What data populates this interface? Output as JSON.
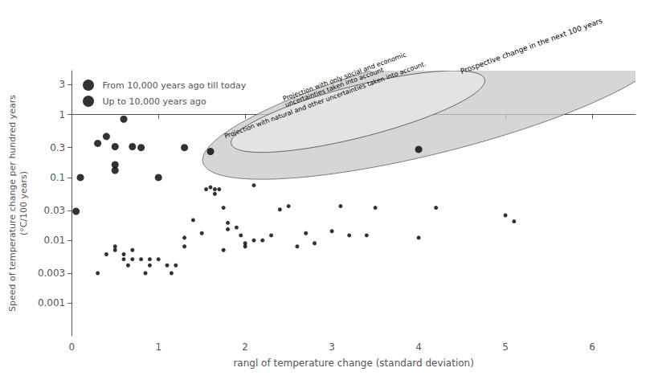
{
  "chart_data": {
    "type": "scatter",
    "xlabel": "rangl of temperature change (standard deviation)",
    "ylabel": "Speed of temperature change per hundred years\n(°C/100 years)",
    "log": "y",
    "grid": false,
    "legend": "upper left",
    "xlim": [
      0,
      6.5
    ],
    "ylim": [
      0.0003019951720402,
      5.011872336272722
    ],
    "xticks": [
      0,
      1,
      2,
      3,
      4,
      5,
      6
    ],
    "yticks": [
      0.001,
      0.003,
      0.01,
      0.03,
      0.1,
      0.3,
      1,
      3
    ],
    "series": [
      {
        "name": "From 10,000 years ago till today",
        "color": "#000000",
        "marker": "circle",
        "x": [
          0.05,
          0.1,
          0.3,
          0.4,
          0.5,
          0.5,
          0.5,
          0.6,
          0.7,
          0.8,
          1.0,
          1.3,
          1.6,
          4.0
        ],
        "values": [
          0.029,
          0.1,
          0.35,
          0.45,
          0.13,
          0.16,
          0.31,
          0.85,
          0.31,
          0.3,
          0.1,
          0.3,
          0.26,
          0.28
        ]
      },
      {
        "name": "Up to 10,000 years ago",
        "color": "#000000",
        "marker": "circle",
        "x": [
          0.3,
          0.4,
          0.5,
          0.5,
          0.6,
          0.6,
          0.65,
          0.7,
          0.7,
          0.8,
          0.85,
          0.9,
          0.9,
          1.0,
          1.1,
          1.15,
          1.2,
          1.3,
          1.3,
          1.4,
          1.5,
          1.55,
          1.6,
          1.65,
          1.65,
          1.7,
          1.75,
          1.75,
          1.8,
          1.8,
          1.9,
          1.95,
          2.0,
          2.0,
          2.1,
          2.1,
          2.2,
          2.3,
          2.4,
          2.5,
          2.6,
          2.7,
          2.8,
          3.0,
          3.1,
          3.2,
          3.4,
          3.5,
          4.0,
          4.2,
          5.0,
          5.1
        ],
        "values": [
          0.003,
          0.006,
          0.007,
          0.008,
          0.005,
          0.006,
          0.004,
          0.007,
          0.005,
          0.005,
          0.003,
          0.005,
          0.004,
          0.005,
          0.004,
          0.003,
          0.004,
          0.008,
          0.011,
          0.021,
          0.013,
          0.065,
          0.07,
          0.065,
          0.055,
          0.065,
          0.007,
          0.033,
          0.015,
          0.019,
          0.016,
          0.012,
          0.008,
          0.009,
          0.01,
          0.075,
          0.01,
          0.012,
          0.031,
          0.035,
          0.008,
          0.013,
          0.009,
          0.014,
          0.035,
          0.012,
          0.012,
          0.033,
          0.011,
          0.033,
          0.025,
          0.02
        ]
      }
    ],
    "ellipses": [
      {
        "cx": 4.2,
        "cy": 1.5135612484362082,
        "half_width": 2.85,
        "half_height_decades": 0.76,
        "angle": 20,
        "color": "#c8c8c8",
        "edge_color": "#333333"
      },
      {
        "cx": 3.3,
        "cy": 1.1220184543019633,
        "half_width": 1.55,
        "half_height_decades": 0.4,
        "angle": 20,
        "color": "#e4e4e4",
        "edge_color": "#333333"
      }
    ],
    "annotations": [
      {
        "text": "Prospective change in the next 100 years",
        "x": 4.5,
        "y": 4.265795188015927
      },
      {
        "text": "Projection with only social and economic\nuncertainties taken into account",
        "x": 2.45,
        "y": 1.5848931924611136
      },
      {
        "text": "Projection with natural and other uncertainties taken into account.",
        "x": 1.75,
        "y": 0.5011872336272722
      }
    ]
  }
}
